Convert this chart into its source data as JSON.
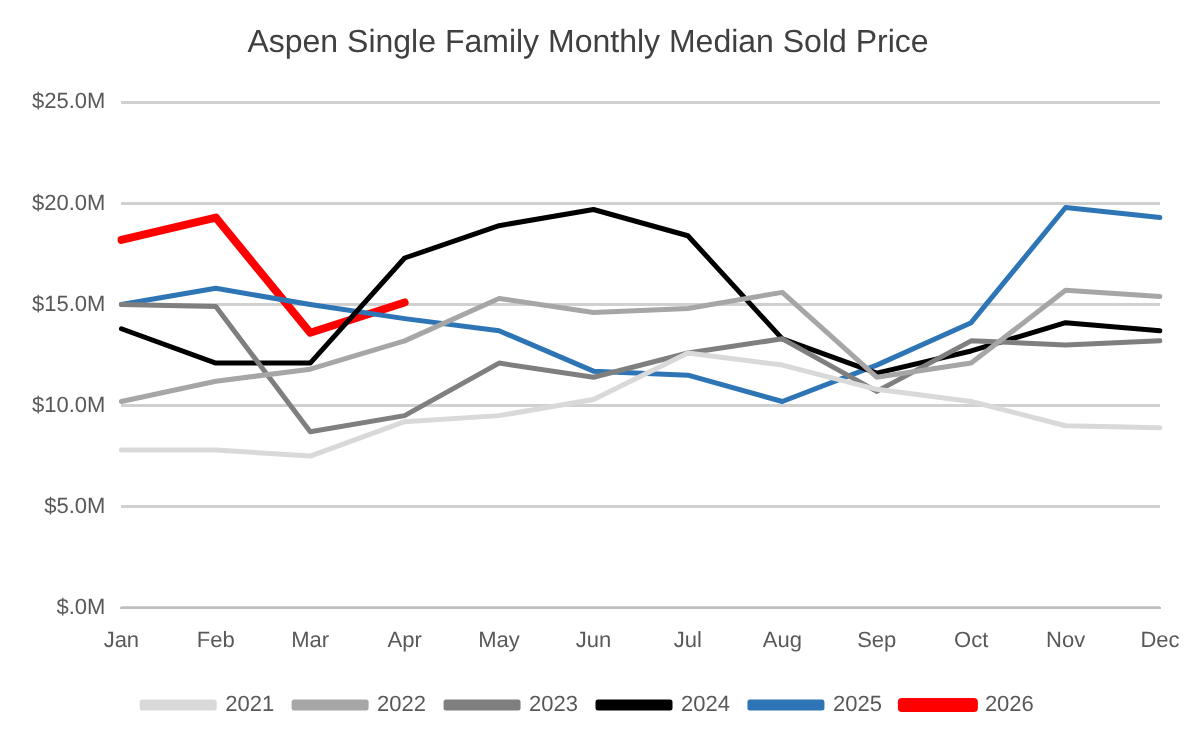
{
  "chart_data": {
    "type": "line",
    "title": "Aspen Single Family Monthly Median Sold Price",
    "categories": [
      "Jan",
      "Feb",
      "Mar",
      "Apr",
      "May",
      "Jun",
      "Jul",
      "Aug",
      "Sep",
      "Oct",
      "Nov",
      "Dec"
    ],
    "series": [
      {
        "name": "2021",
        "color": "#d9d9d9",
        "values": [
          7.8,
          7.8,
          7.5,
          9.2,
          9.5,
          10.3,
          12.6,
          12.0,
          10.8,
          10.2,
          9.0,
          8.9
        ]
      },
      {
        "name": "2022",
        "color": "#a6a6a6",
        "values": [
          10.2,
          11.2,
          11.8,
          13.2,
          15.3,
          14.6,
          14.8,
          15.6,
          11.4,
          12.1,
          15.7,
          15.4
        ]
      },
      {
        "name": "2023",
        "color": "#7f7f7f",
        "values": [
          15.0,
          14.9,
          8.7,
          9.5,
          12.1,
          11.4,
          12.6,
          13.3,
          10.7,
          13.2,
          13.0,
          13.2
        ]
      },
      {
        "name": "2024",
        "color": "#000000",
        "values": [
          13.8,
          12.1,
          12.1,
          17.3,
          18.9,
          19.7,
          18.4,
          13.3,
          11.6,
          12.7,
          14.1,
          13.7
        ]
      },
      {
        "name": "2025",
        "color": "#2e75b6",
        "values": [
          15.0,
          15.8,
          15.0,
          14.3,
          13.7,
          11.7,
          11.5,
          10.2,
          12.0,
          14.1,
          19.8,
          19.3
        ]
      },
      {
        "name": "2026",
        "color": "#ff0000",
        "values": [
          18.2,
          19.3,
          13.6,
          15.1,
          null,
          null,
          null,
          null,
          null,
          null,
          null,
          null
        ]
      }
    ],
    "ylim": [
      0,
      25
    ],
    "yticks": [
      {
        "value": 0,
        "label": "$.0M"
      },
      {
        "value": 5,
        "label": "$5.0M"
      },
      {
        "value": 10,
        "label": "$10.0M"
      },
      {
        "value": 15,
        "label": "$15.0M"
      },
      {
        "value": 20,
        "label": "$20.0M"
      },
      {
        "value": 25,
        "label": "$25.0M"
      }
    ],
    "grid": "y",
    "legend": "bottom",
    "marker": "none",
    "line_style": "solid"
  }
}
